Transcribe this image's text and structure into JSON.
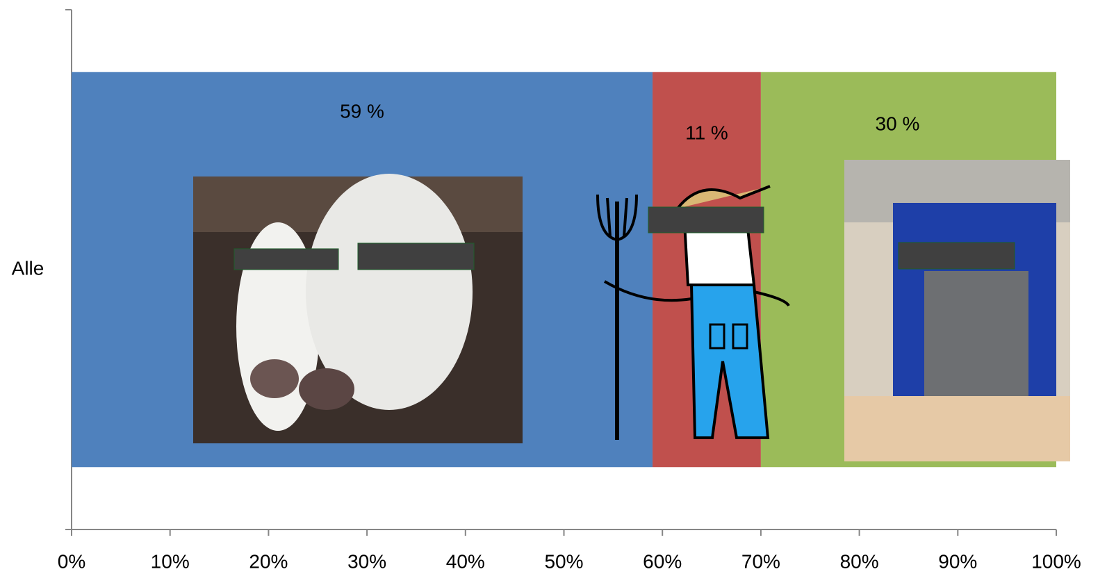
{
  "chart_data": {
    "type": "stacked-barh",
    "categories": [
      "Alle"
    ],
    "series": [
      {
        "color": "#4f81bd",
        "values": [
          59
        ],
        "value_labels": [
          "59 %"
        ]
      },
      {
        "color": "#c0504d",
        "values": [
          11
        ],
        "value_labels": [
          "11 %"
        ]
      },
      {
        "color": "#9bbb59",
        "values": [
          30
        ],
        "value_labels": [
          "30 %"
        ]
      }
    ],
    "xlim": [
      0,
      100
    ],
    "xticks": [
      {
        "value": 0,
        "label": "0%"
      },
      {
        "value": 10,
        "label": "10%"
      },
      {
        "value": 20,
        "label": "20%"
      },
      {
        "value": 30,
        "label": "30%"
      },
      {
        "value": 40,
        "label": "40%"
      },
      {
        "value": 50,
        "label": "50%"
      },
      {
        "value": 60,
        "label": "60%"
      },
      {
        "value": 70,
        "label": "70%"
      },
      {
        "value": 80,
        "label": "80%"
      },
      {
        "value": 90,
        "label": "90%"
      },
      {
        "value": 100,
        "label": "100%"
      }
    ]
  }
}
